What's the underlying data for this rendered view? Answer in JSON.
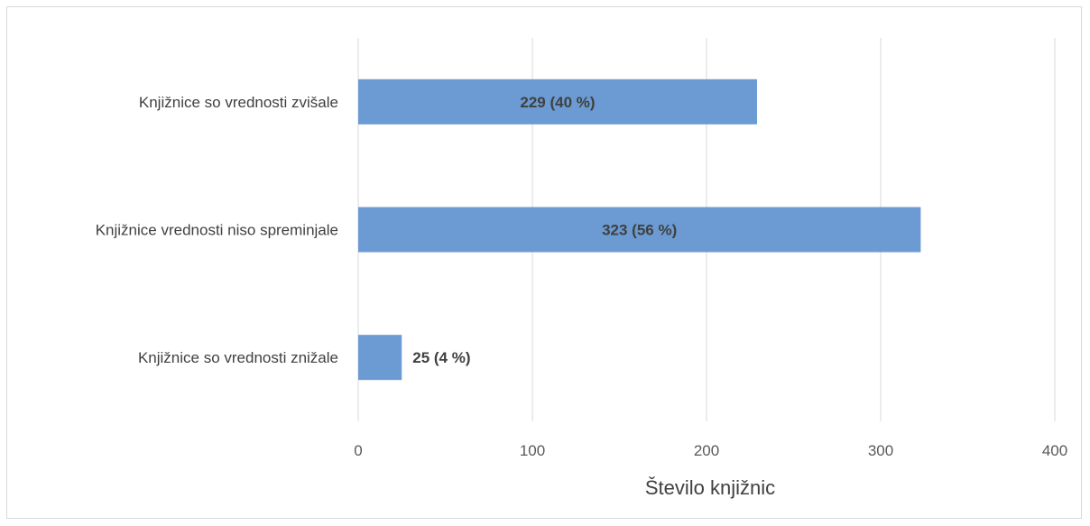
{
  "chart_data": {
    "type": "bar",
    "orientation": "horizontal",
    "categories": [
      "Knjižnice so vrednosti zvišale",
      "Knjižnice vrednosti niso spreminjale",
      "Knjižnice so vrednosti znižale"
    ],
    "values": [
      229,
      323,
      25
    ],
    "data_labels": [
      "229 (40 %)",
      "323 (56 %)",
      "25 (4 %)"
    ],
    "xlabel": "Število knjižnic",
    "ylabel": "",
    "title": "",
    "xlim": [
      0,
      400
    ],
    "x_ticks": [
      0,
      100,
      200,
      300,
      400
    ],
    "grid": "vertical",
    "legend": "none",
    "bar_color": "#6b9bd2",
    "gridline_color": "#d9d9d9"
  }
}
